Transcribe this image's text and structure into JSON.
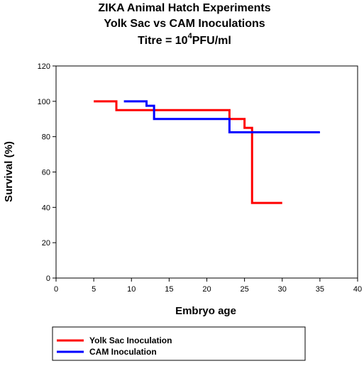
{
  "chart_data": {
    "type": "line",
    "title_lines": [
      "ZIKA Animal Hatch Experiments",
      "Yolk Sac vs CAM Inoculations"
    ],
    "titre": {
      "prefix": "Titre = 10",
      "exponent": "4",
      "suffix": "PFU/ml"
    },
    "xlabel": "Embryo age",
    "ylabel": "Survival (%)",
    "xlim": [
      0,
      40
    ],
    "ylim": [
      0,
      120
    ],
    "xticks": [
      0,
      5,
      10,
      15,
      20,
      25,
      30,
      35,
      40
    ],
    "yticks": [
      0,
      20,
      40,
      60,
      80,
      100,
      120
    ],
    "step": true,
    "grid": false,
    "legend_position": "bottom-left",
    "series": [
      {
        "name": "Yolk Sac Inoculation",
        "color": "#ff0000",
        "x": [
          5,
          8,
          23,
          25,
          26,
          30
        ],
        "y": [
          100,
          95,
          90,
          85,
          42.5,
          42.5
        ]
      },
      {
        "name": "CAM Inoculation",
        "color": "#0000ff",
        "x": [
          9,
          12,
          13,
          23,
          35
        ],
        "y": [
          100,
          97.5,
          90,
          82.5,
          82.5
        ]
      }
    ]
  }
}
